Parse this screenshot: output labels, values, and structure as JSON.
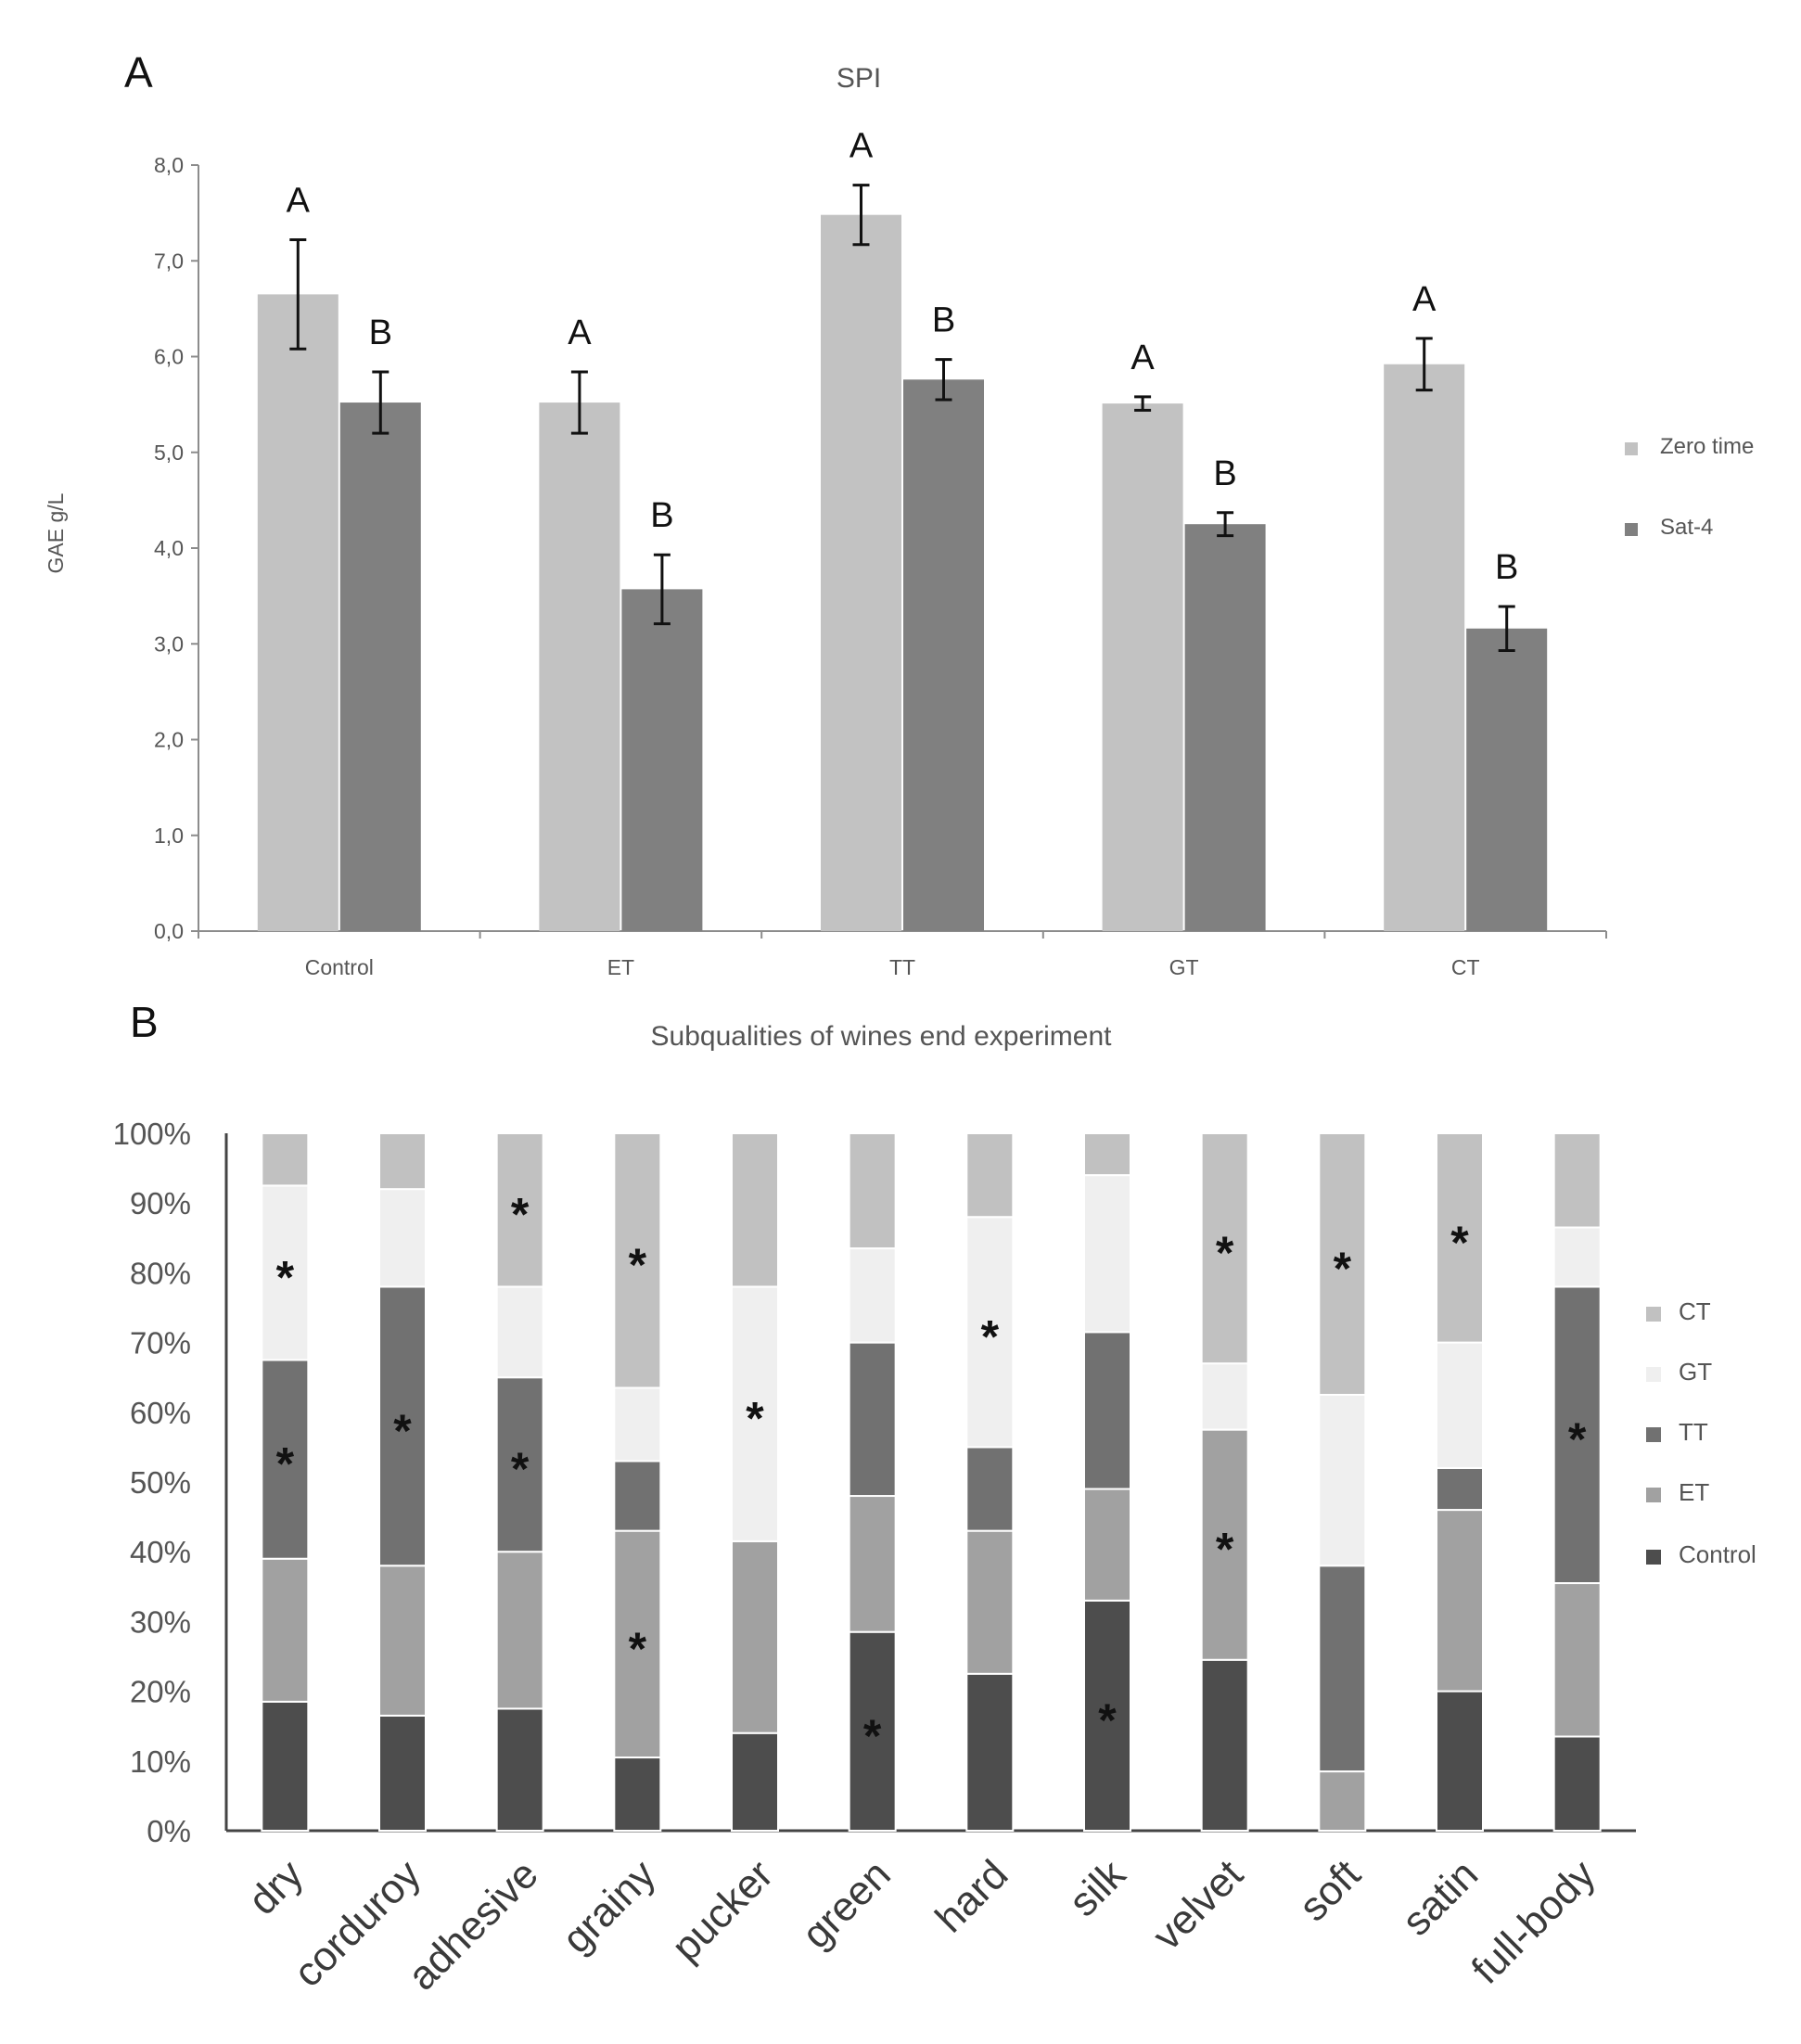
{
  "panel_a": {
    "letter": "A",
    "chart_data": {
      "type": "bar",
      "title": "SPI",
      "ylabel": "GAE g/L",
      "xlabel": "",
      "categories": [
        "Control",
        "ET",
        "TT",
        "GT",
        "CT"
      ],
      "series": [
        {
          "name": "Zero time",
          "color": "#c2c2c2",
          "values": [
            6.65,
            5.52,
            7.48,
            5.51,
            5.92
          ],
          "errors": [
            0.57,
            0.32,
            0.31,
            0.07,
            0.27
          ],
          "letters": [
            "A",
            "A",
            "A",
            "A",
            "A"
          ]
        },
        {
          "name": "Sat-4",
          "color": "#808080",
          "values": [
            5.52,
            3.57,
            5.76,
            4.25,
            3.16
          ],
          "errors": [
            0.32,
            0.36,
            0.21,
            0.12,
            0.23
          ],
          "letters": [
            "B",
            "B",
            "B",
            "B",
            "B"
          ]
        }
      ],
      "ylim": [
        0,
        8
      ],
      "yticks": [
        "0,0",
        "1,0",
        "2,0",
        "3,0",
        "4,0",
        "5,0",
        "6,0",
        "7,0",
        "8,0"
      ],
      "legend_position": "right"
    }
  },
  "panel_b": {
    "letter": "B",
    "chart_data": {
      "type": "bar",
      "stacked": true,
      "title": "Subqualities of wines end experiment",
      "xlabel": "",
      "ylabel": "",
      "categories": [
        "dry",
        "corduroy",
        "adhesive",
        "grainy",
        "pucker",
        "green",
        "hard",
        "silk",
        "velvet",
        "soft",
        "satin",
        "full-body"
      ],
      "series": [
        {
          "name": "Control",
          "color": "#4d4d4d",
          "values": [
            18.5,
            16.5,
            17.5,
            10.5,
            14,
            28.5,
            22.5,
            33,
            24.5,
            0,
            20,
            13.5
          ]
        },
        {
          "name": "ET",
          "color": "#a1a1a1",
          "values": [
            20.5,
            21.5,
            22.5,
            32.5,
            27.5,
            19.5,
            20.5,
            16,
            33,
            8.5,
            26,
            22
          ]
        },
        {
          "name": "TT",
          "color": "#717171",
          "values": [
            28.5,
            40,
            25,
            10,
            0,
            22,
            12,
            22.5,
            0,
            29.5,
            6,
            42.5
          ]
        },
        {
          "name": "GT",
          "color": "#efefef",
          "values": [
            25,
            14,
            13,
            10.5,
            36.5,
            13.5,
            33,
            22.5,
            9.5,
            24.5,
            18,
            8.5
          ]
        },
        {
          "name": "CT",
          "color": "#c1c1c1",
          "values": [
            7.5,
            8,
            22,
            36.5,
            22,
            16.5,
            12,
            6,
            33,
            37.5,
            30,
            13.5
          ]
        }
      ],
      "ylim": [
        0,
        100
      ],
      "yticks": [
        "0%",
        "10%",
        "20%",
        "30%",
        "40%",
        "50%",
        "60%",
        "70%",
        "80%",
        "90%",
        "100%"
      ],
      "significance_markers": [
        {
          "category": 0,
          "series": "GT",
          "label": "*"
        },
        {
          "category": 0,
          "series": "TT",
          "label": "*"
        },
        {
          "category": 1,
          "series": "TT",
          "label": "*"
        },
        {
          "category": 2,
          "series": "CT",
          "label": "*"
        },
        {
          "category": 2,
          "series": "TT",
          "label": "*"
        },
        {
          "category": 3,
          "series": "CT",
          "label": "*"
        },
        {
          "category": 3,
          "series": "ET",
          "label": "*"
        },
        {
          "category": 4,
          "series": "GT",
          "label": "*"
        },
        {
          "category": 5,
          "series": "Control",
          "label": "*"
        },
        {
          "category": 6,
          "series": "GT",
          "label": "*"
        },
        {
          "category": 7,
          "series": "Control",
          "label": "*"
        },
        {
          "category": 8,
          "series": "CT",
          "label": "*"
        },
        {
          "category": 8,
          "series": "ET",
          "label": "*"
        },
        {
          "category": 9,
          "series": "CT",
          "label": "*"
        },
        {
          "category": 10,
          "series": "CT",
          "label": "*"
        },
        {
          "category": 11,
          "series": "TT",
          "label": "*"
        }
      ],
      "legend_order": [
        "CT",
        "GT",
        "TT",
        "ET",
        "Control"
      ],
      "legend_position": "right"
    }
  }
}
